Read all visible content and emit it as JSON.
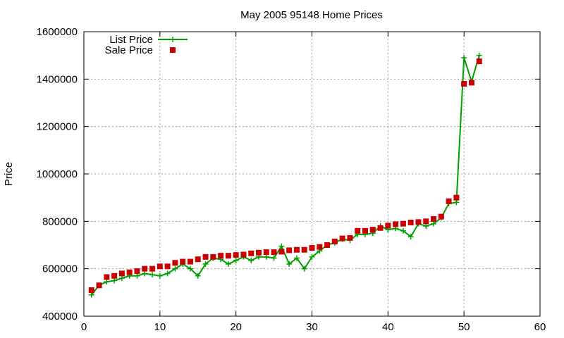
{
  "chart_data": {
    "type": "line",
    "title": "May 2005 95148 Home Prices",
    "xlabel": "",
    "ylabel": "Price",
    "xlim": [
      0,
      60
    ],
    "ylim": [
      400000,
      1600000
    ],
    "x_ticks": [
      "0",
      "10",
      "20",
      "30",
      "40",
      "50",
      "60"
    ],
    "y_ticks": [
      "400000",
      "600000",
      "800000",
      "1000000",
      "1200000",
      "1400000",
      "1600000"
    ],
    "grid": true,
    "legend_position": "top-left",
    "series": [
      {
        "name": "List Price",
        "style": "line-plus",
        "color": "#00a000",
        "x": [
          1,
          2,
          3,
          4,
          5,
          6,
          7,
          8,
          9,
          10,
          11,
          12,
          13,
          14,
          15,
          16,
          17,
          18,
          19,
          20,
          21,
          22,
          23,
          24,
          25,
          26,
          27,
          28,
          29,
          30,
          31,
          32,
          33,
          34,
          35,
          36,
          37,
          38,
          39,
          40,
          41,
          42,
          43,
          44,
          45,
          46,
          47,
          48,
          49,
          50,
          51,
          52
        ],
        "y": [
          490000,
          530000,
          545000,
          550000,
          560000,
          570000,
          570000,
          580000,
          575000,
          570000,
          580000,
          600000,
          620000,
          600000,
          570000,
          620000,
          645000,
          640000,
          620000,
          635000,
          650000,
          635000,
          650000,
          650000,
          645000,
          695000,
          620000,
          645000,
          600000,
          650000,
          675000,
          700000,
          710000,
          725000,
          720000,
          745000,
          745000,
          750000,
          780000,
          765000,
          770000,
          760000,
          735000,
          790000,
          780000,
          790000,
          815000,
          875000,
          880000,
          1490000,
          1390000,
          1500000
        ]
      },
      {
        "name": "Sale Price",
        "style": "square",
        "color": "#cc0000",
        "x": [
          1,
          2,
          3,
          4,
          5,
          6,
          7,
          8,
          9,
          10,
          11,
          12,
          13,
          14,
          15,
          16,
          17,
          18,
          19,
          20,
          21,
          22,
          23,
          24,
          25,
          26,
          27,
          28,
          29,
          30,
          31,
          32,
          33,
          34,
          35,
          36,
          37,
          38,
          39,
          40,
          41,
          42,
          43,
          44,
          45,
          46,
          47,
          48,
          49,
          50,
          51,
          52
        ],
        "y": [
          510000,
          530000,
          565000,
          570000,
          580000,
          585000,
          590000,
          600000,
          600000,
          610000,
          610000,
          625000,
          630000,
          630000,
          640000,
          650000,
          650000,
          655000,
          655000,
          658000,
          660000,
          665000,
          668000,
          670000,
          670000,
          672000,
          678000,
          680000,
          680000,
          688000,
          692000,
          700000,
          715000,
          728000,
          730000,
          760000,
          760000,
          765000,
          772000,
          782000,
          788000,
          790000,
          795000,
          797000,
          800000,
          810000,
          820000,
          885000,
          900000,
          1380000,
          1385000,
          1475000
        ]
      }
    ]
  }
}
